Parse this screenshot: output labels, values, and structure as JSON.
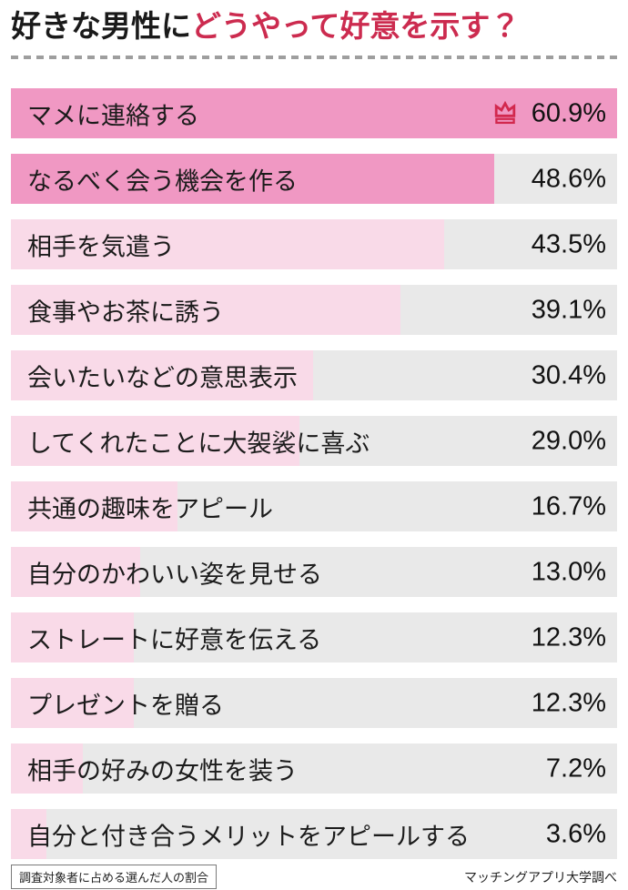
{
  "header": {
    "title_plain": "好きな男性に",
    "title_accent": "どうやって好意を示す？"
  },
  "chart_data": {
    "type": "bar",
    "orientation": "horizontal",
    "title": "好きな男性にどうやって好意を示す？",
    "unit": "%",
    "scale_max": 60.9,
    "categories": [
      "マメに連絡する",
      "なるべく会う機会を作る",
      "相手を気遣う",
      "食事やお茶に誘う",
      "会いたいなどの意思表示",
      "してくれたことに大袈裟に喜ぶ",
      "共通の趣味をアピール",
      "自分のかわいい姿を見せる",
      "ストレートに好意を伝える",
      "プレゼントを贈る",
      "相手の好みの女性を装う",
      "自分と付き合うメリットをアピールする"
    ],
    "values": [
      60.9,
      48.6,
      43.5,
      39.1,
      30.4,
      29.0,
      16.7,
      13.0,
      12.3,
      12.3,
      7.2,
      3.6
    ],
    "rows": [
      {
        "label": "マメに連絡する",
        "value": 60.9,
        "value_label": "60.9%",
        "rank_crown": true,
        "tier": "strong"
      },
      {
        "label": "なるべく会う機会を作る",
        "value": 48.6,
        "value_label": "48.6%",
        "rank_crown": false,
        "tier": "strong"
      },
      {
        "label": "相手を気遣う",
        "value": 43.5,
        "value_label": "43.5%",
        "rank_crown": false,
        "tier": "light"
      },
      {
        "label": "食事やお茶に誘う",
        "value": 39.1,
        "value_label": "39.1%",
        "rank_crown": false,
        "tier": "light"
      },
      {
        "label": "会いたいなどの意思表示",
        "value": 30.4,
        "value_label": "30.4%",
        "rank_crown": false,
        "tier": "light"
      },
      {
        "label": "してくれたことに大袈裟に喜ぶ",
        "value": 29.0,
        "value_label": "29.0%",
        "rank_crown": false,
        "tier": "light"
      },
      {
        "label": "共通の趣味をアピール",
        "value": 16.7,
        "value_label": "16.7%",
        "rank_crown": false,
        "tier": "light"
      },
      {
        "label": "自分のかわいい姿を見せる",
        "value": 13.0,
        "value_label": "13.0%",
        "rank_crown": false,
        "tier": "light"
      },
      {
        "label": "ストレートに好意を伝える",
        "value": 12.3,
        "value_label": "12.3%",
        "rank_crown": false,
        "tier": "light"
      },
      {
        "label": "プレゼントを贈る",
        "value": 12.3,
        "value_label": "12.3%",
        "rank_crown": false,
        "tier": "light"
      },
      {
        "label": "相手の好みの女性を装う",
        "value": 7.2,
        "value_label": "7.2%",
        "rank_crown": false,
        "tier": "light"
      },
      {
        "label": "自分と付き合うメリットをアピールする",
        "value": 3.6,
        "value_label": "3.6%",
        "rank_crown": false,
        "tier": "light"
      }
    ],
    "legend": [],
    "grid": false
  },
  "footer": {
    "note": "調査対象者に占める選んだ人の割合",
    "source": "マッチングアプリ大学調べ"
  },
  "colors": {
    "accent_red": "#cc2b4f",
    "crown_red": "#d2284e",
    "bar_strong": "#f098c3",
    "bar_light": "#f9dae8",
    "bar_track": "#e9e9e9",
    "dash_gray": "#9e9e9e"
  }
}
